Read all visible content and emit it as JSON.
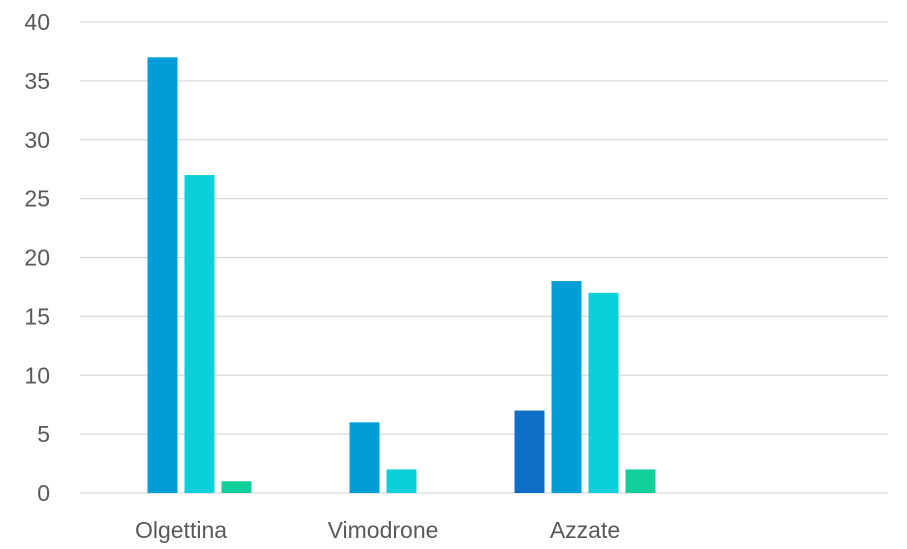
{
  "chart_data": {
    "type": "bar",
    "title": "",
    "xlabel": "",
    "ylabel": "",
    "ylim": [
      0,
      40
    ],
    "yticks": [
      0,
      5,
      10,
      15,
      20,
      25,
      30,
      35,
      40
    ],
    "grid": true,
    "legend": "none",
    "categories": [
      "Olgettina",
      "Vimodrone",
      "Azzate",
      ""
    ],
    "series": [
      {
        "color": "#0f6fc6",
        "values": [
          0,
          0,
          7,
          0
        ]
      },
      {
        "color": "#009dd9",
        "values": [
          37,
          6,
          18,
          0
        ]
      },
      {
        "color": "#0bd0d9",
        "values": [
          27,
          2,
          17,
          0
        ]
      },
      {
        "color": "#10cf9b",
        "values": [
          1,
          0,
          2,
          0
        ]
      }
    ]
  }
}
